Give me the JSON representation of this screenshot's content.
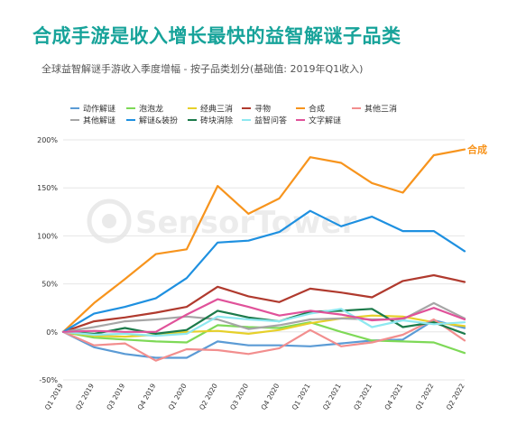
{
  "header": {
    "title": "合成手游是收入增长最快的益智解谜子品类",
    "subtitle": "全球益智解谜手游收入季度增幅 - 按子品类划分(基础值: 2019年Q1收入)"
  },
  "watermark": "SensorTower",
  "chart_data": {
    "type": "line",
    "title": "",
    "xlabel": "",
    "ylabel": "",
    "ylim": [
      -50,
      200
    ],
    "yticks": [
      -50,
      0,
      50,
      100,
      150,
      200
    ],
    "ytick_labels": [
      "-50%",
      "0%",
      "50%",
      "100%",
      "150%",
      "200%"
    ],
    "grid": "horizontal",
    "legend_position": "top",
    "categories": [
      "Q1 2019",
      "Q2 2019",
      "Q3 2019",
      "Q4 2019",
      "Q1 2020",
      "Q2 2020",
      "Q3 2020",
      "Q4 2020",
      "Q1 2021",
      "Q2 2021",
      "Q3 2021",
      "Q4 2021",
      "Q1 2022",
      "Q2 2022"
    ],
    "end_label": "合成",
    "series": [
      {
        "name": "动作解谜",
        "color": "#5b9bd5",
        "values": [
          0,
          -16,
          -23,
          -27,
          -27,
          -10,
          -14,
          -14,
          -15,
          -12,
          -9,
          -8,
          12,
          4
        ]
      },
      {
        "name": "泡泡龙",
        "color": "#7ed957",
        "values": [
          0,
          -6,
          -8,
          -10,
          -11,
          7,
          5,
          4,
          10,
          0,
          -9,
          -10,
          -11,
          -22
        ]
      },
      {
        "name": "经典三消",
        "color": "#e6d02a",
        "values": [
          0,
          -4,
          -5,
          -3,
          0,
          1,
          -2,
          2,
          9,
          14,
          17,
          16,
          10,
          6
        ]
      },
      {
        "name": "寻物",
        "color": "#b03a2e",
        "values": [
          0,
          11,
          15,
          20,
          26,
          47,
          37,
          31,
          45,
          41,
          36,
          53,
          59,
          52
        ]
      },
      {
        "name": "合成",
        "color": "#f7941d",
        "values": [
          0,
          30,
          55,
          81,
          86,
          152,
          123,
          139,
          182,
          176,
          155,
          145,
          184,
          190
        ]
      },
      {
        "name": "其他三消",
        "color": "#f28e8e",
        "values": [
          0,
          -14,
          -12,
          -30,
          -18,
          -19,
          -23,
          -17,
          2,
          -15,
          -11,
          -3,
          13,
          -9
        ]
      },
      {
        "name": "其他解谜",
        "color": "#a6a6a6",
        "values": [
          0,
          5,
          11,
          13,
          16,
          13,
          3,
          7,
          13,
          14,
          13,
          13,
          30,
          14
        ]
      },
      {
        "name": "解谜&装扮",
        "color": "#1e90e0",
        "values": [
          0,
          19,
          26,
          35,
          56,
          93,
          95,
          104,
          126,
          110,
          120,
          105,
          105,
          84
        ]
      },
      {
        "name": "砖块消除",
        "color": "#1b7a4a",
        "values": [
          0,
          -2,
          4,
          -2,
          2,
          22,
          15,
          11,
          21,
          22,
          24,
          5,
          10,
          -2
        ]
      },
      {
        "name": "益智问答",
        "color": "#8ee8f0",
        "values": [
          0,
          -3,
          -2,
          -4,
          -2,
          16,
          13,
          11,
          19,
          24,
          5,
          12,
          8,
          10
        ]
      },
      {
        "name": "文字解谜",
        "color": "#e0529a",
        "values": [
          0,
          1,
          0,
          0,
          18,
          34,
          26,
          17,
          22,
          18,
          12,
          14,
          25,
          13
        ]
      }
    ]
  }
}
